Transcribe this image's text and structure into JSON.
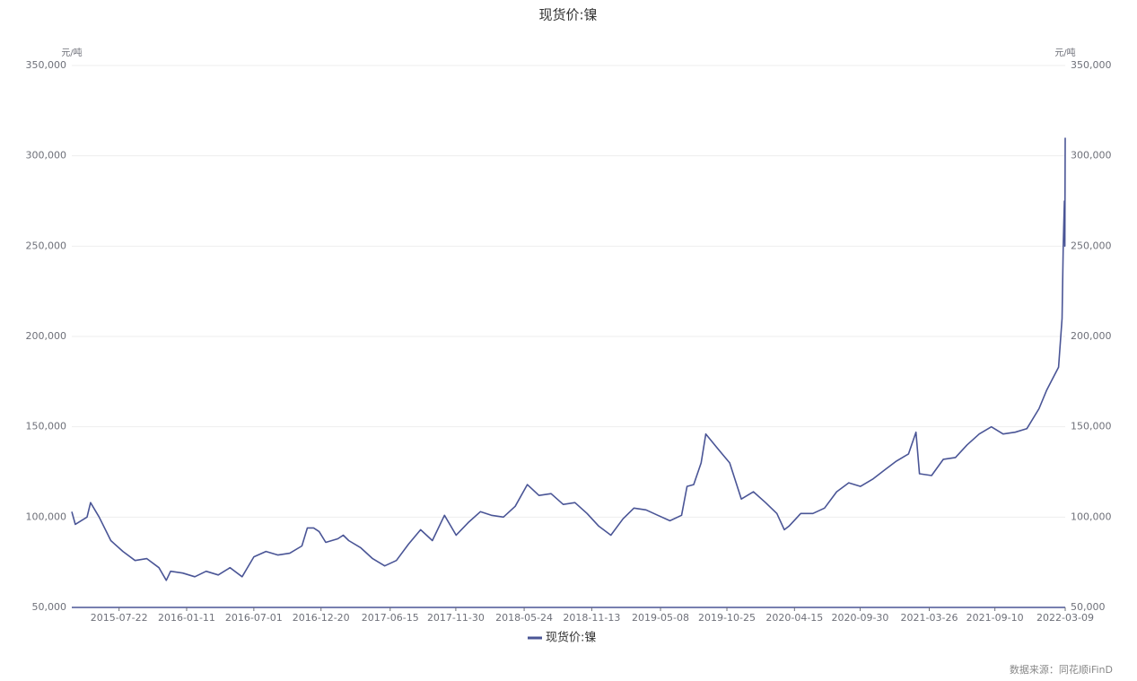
{
  "chart_data": {
    "type": "line",
    "title": "现货价:镍",
    "ylabel": "元/吨",
    "y2label": "元/吨",
    "source": "数据来源：同花顺iFinD",
    "xlim": [
      "2015-03-23",
      "2022-03-09"
    ],
    "xticks": [
      "2015-07-22",
      "2016-01-11",
      "2016-07-01",
      "2016-12-20",
      "2017-06-15",
      "2017-11-30",
      "2018-05-24",
      "2018-11-13",
      "2019-05-08",
      "2019-10-25",
      "2020-04-15",
      "2020-09-30",
      "2021-03-26",
      "2021-09-10",
      "2022-03-09"
    ],
    "ylim": [
      50000,
      350000
    ],
    "yticks": [
      {
        "value": 50000,
        "label": "50,000"
      },
      {
        "value": 100000,
        "label": "100,000"
      },
      {
        "value": 150000,
        "label": "150,000"
      },
      {
        "value": 200000,
        "label": "200,000"
      },
      {
        "value": 250000,
        "label": "250,000"
      },
      {
        "value": 300000,
        "label": "300,000"
      },
      {
        "value": 350000,
        "label": "350,000"
      }
    ],
    "y2lim": [
      50000,
      350000
    ],
    "y2ticks": [
      {
        "value": 50000,
        "label": "50,000"
      },
      {
        "value": 100000,
        "label": "100,000"
      },
      {
        "value": 150000,
        "label": "150,000"
      },
      {
        "value": 200000,
        "label": "200,000"
      },
      {
        "value": 250000,
        "label": "250,000"
      },
      {
        "value": 300000,
        "label": "300,000"
      },
      {
        "value": 350000,
        "label": "350,000"
      }
    ],
    "grid": true,
    "legend": "bottom",
    "x": [
      "2015-03-23",
      "2015-04-01",
      "2015-05-01",
      "2015-05-10",
      "2015-06-01",
      "2015-07-01",
      "2015-08-01",
      "2015-09-01",
      "2015-10-01",
      "2015-11-01",
      "2015-11-20",
      "2015-12-01",
      "2016-01-01",
      "2016-02-01",
      "2016-03-01",
      "2016-04-01",
      "2016-05-01",
      "2016-06-01",
      "2016-07-01",
      "2016-08-01",
      "2016-09-01",
      "2016-10-01",
      "2016-11-01",
      "2016-11-15",
      "2016-12-01",
      "2016-12-15",
      "2017-01-01",
      "2017-02-01",
      "2017-02-15",
      "2017-03-01",
      "2017-04-01",
      "2017-05-01",
      "2017-06-01",
      "2017-07-01",
      "2017-08-01",
      "2017-09-01",
      "2017-10-01",
      "2017-11-01",
      "2017-12-01",
      "2018-01-01",
      "2018-02-01",
      "2018-03-01",
      "2018-04-01",
      "2018-05-01",
      "2018-06-01",
      "2018-07-01",
      "2018-08-01",
      "2018-09-01",
      "2018-10-01",
      "2018-11-01",
      "2018-12-01",
      "2019-01-01",
      "2019-02-01",
      "2019-03-01",
      "2019-04-01",
      "2019-05-01",
      "2019-06-01",
      "2019-07-01",
      "2019-07-15",
      "2019-08-01",
      "2019-08-20",
      "2019-09-01",
      "2019-10-01",
      "2019-11-01",
      "2019-12-01",
      "2020-01-01",
      "2020-02-01",
      "2020-03-01",
      "2020-03-20",
      "2020-04-01",
      "2020-05-01",
      "2020-06-01",
      "2020-07-01",
      "2020-08-01",
      "2020-09-01",
      "2020-10-01",
      "2020-11-01",
      "2020-12-01",
      "2021-01-01",
      "2021-02-01",
      "2021-02-20",
      "2021-03-01",
      "2021-04-01",
      "2021-05-01",
      "2021-06-01",
      "2021-07-01",
      "2021-08-01",
      "2021-09-01",
      "2021-10-01",
      "2021-11-01",
      "2021-12-01",
      "2022-01-01",
      "2022-01-20",
      "2022-02-01",
      "2022-02-20",
      "2022-03-01",
      "2022-03-04",
      "2022-03-07",
      "2022-03-08",
      "2022-03-09"
    ],
    "series": [
      {
        "name": "现货价:镍",
        "color": "#4a5596",
        "values": [
          103000,
          96000,
          100000,
          108000,
          100000,
          87000,
          81000,
          76000,
          77000,
          72000,
          65000,
          70000,
          69000,
          67000,
          70000,
          68000,
          72000,
          67000,
          78000,
          81000,
          79000,
          80000,
          84000,
          94000,
          94000,
          92000,
          86000,
          88000,
          90000,
          87000,
          83000,
          77000,
          73000,
          76000,
          85000,
          93000,
          87000,
          101000,
          90000,
          97000,
          103000,
          101000,
          100000,
          106000,
          118000,
          112000,
          113000,
          107000,
          108000,
          102000,
          95000,
          90000,
          99000,
          105000,
          104000,
          101000,
          98000,
          101000,
          117000,
          118000,
          130000,
          146000,
          138000,
          130000,
          110000,
          114000,
          108000,
          102000,
          93000,
          95000,
          102000,
          102000,
          105000,
          114000,
          119000,
          117000,
          121000,
          126000,
          131000,
          135000,
          147000,
          124000,
          123000,
          132000,
          133000,
          140000,
          146000,
          150000,
          146000,
          147000,
          149000,
          160000,
          170000,
          175000,
          183000,
          210000,
          250000,
          275000,
          250000,
          310000
        ]
      }
    ]
  }
}
